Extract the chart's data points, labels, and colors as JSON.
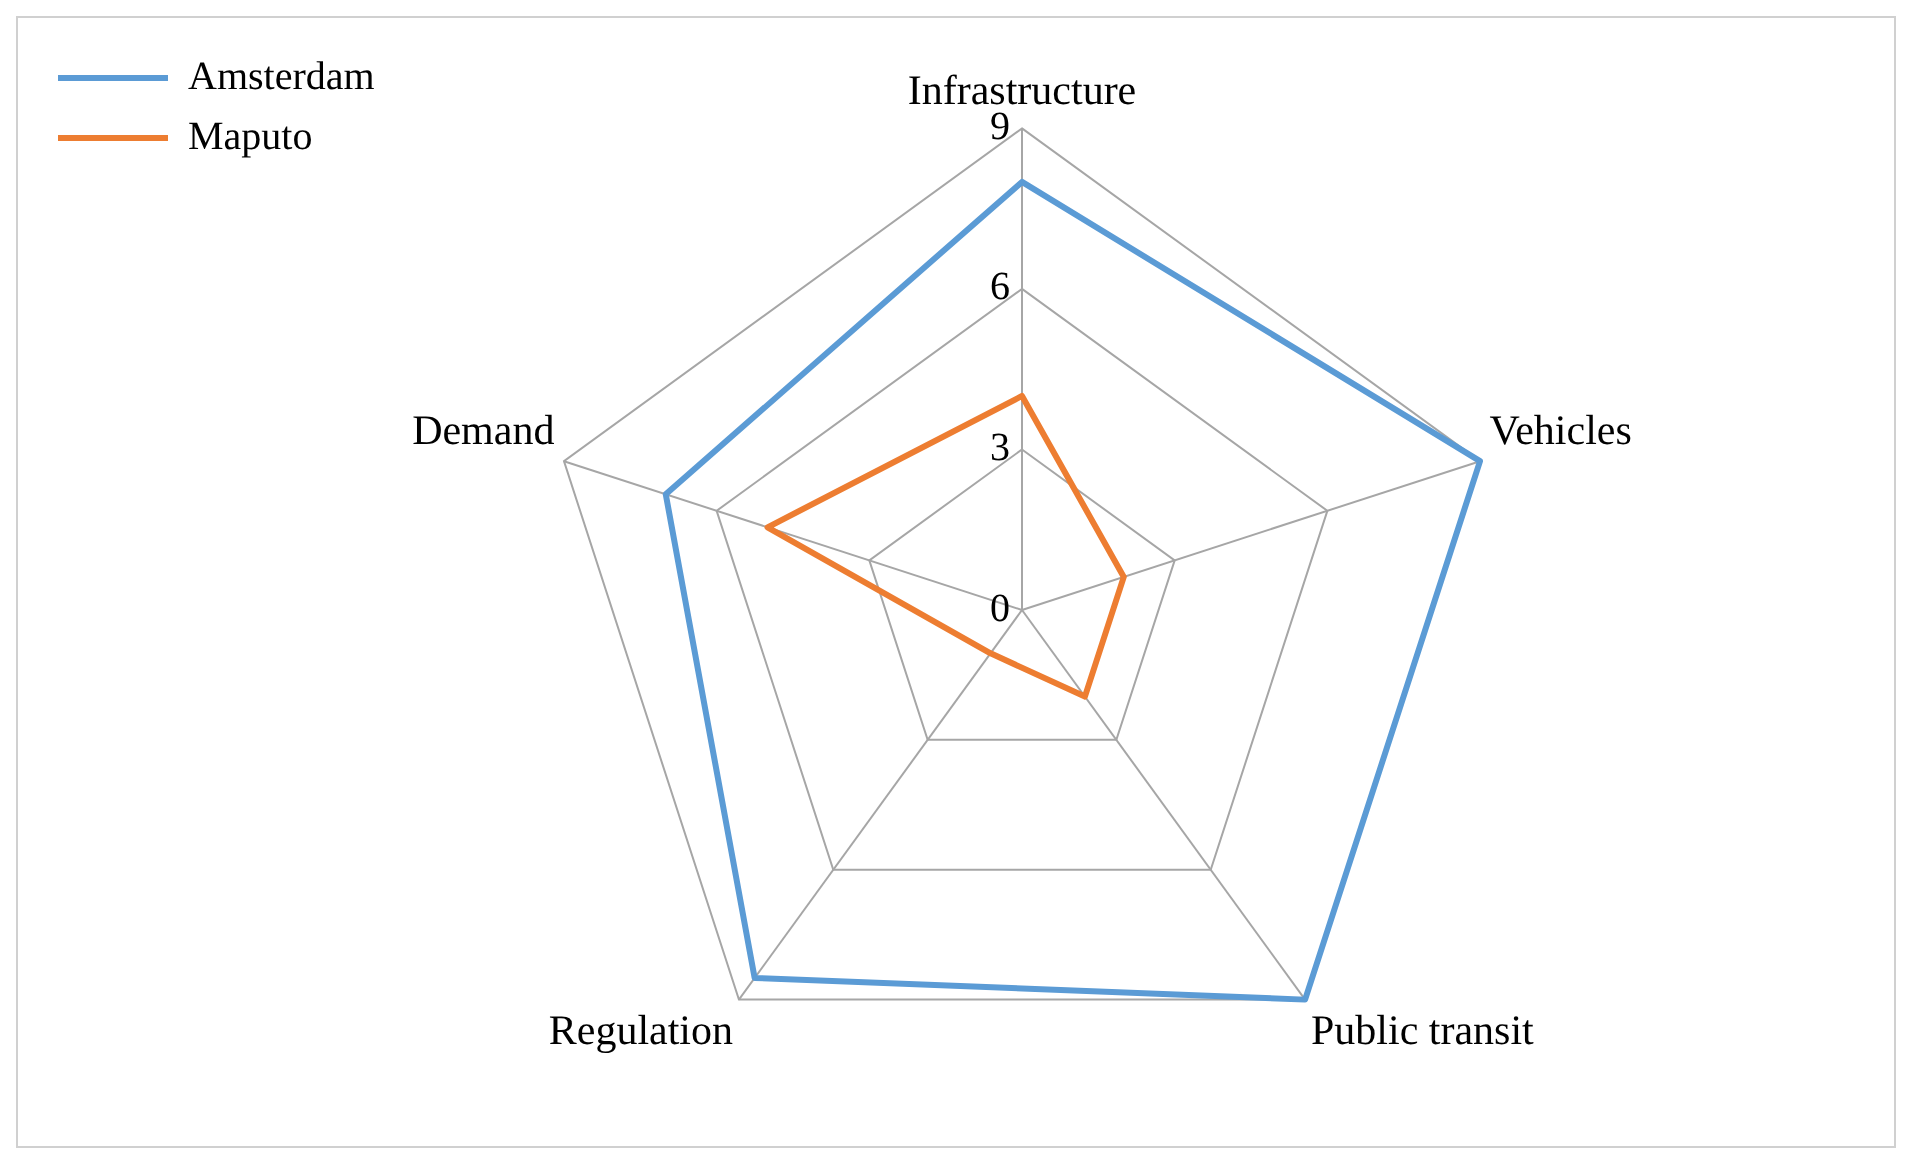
{
  "chart_data": {
    "type": "radar",
    "categories": [
      "Infrastructure",
      "Vehicles",
      "Public transit",
      "Regulation",
      "Demand"
    ],
    "series": [
      {
        "name": "Amsterdam",
        "color": "#5b9bd5",
        "values": [
          8,
          9,
          9,
          8.5,
          7
        ]
      },
      {
        "name": "Maputo",
        "color": "#ed7d31",
        "values": [
          4,
          2,
          2,
          1,
          5
        ]
      }
    ],
    "ylim": [
      0,
      9
    ],
    "yticks": [
      0,
      3,
      6,
      9
    ],
    "grid": true,
    "legend": "top left",
    "marker": "none"
  }
}
